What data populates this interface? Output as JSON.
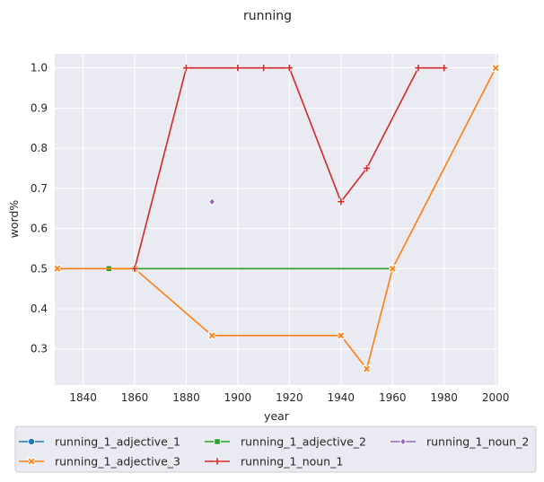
{
  "chart_data": {
    "type": "line",
    "title": "running",
    "xlabel": "year",
    "ylabel": "word%",
    "xlim": [
      1829,
      2001
    ],
    "ylim": [
      0.21,
      1.035
    ],
    "xticks": [
      1840,
      1860,
      1880,
      1900,
      1920,
      1940,
      1960,
      1980,
      2000
    ],
    "yticks": [
      0.3,
      0.4,
      0.5,
      0.6,
      0.7,
      0.8,
      0.9,
      1.0
    ],
    "grid": true,
    "legend_position": "bottom",
    "series": [
      {
        "name": "running_1_adjective_1",
        "color": "#1f77b4",
        "marker": "circle",
        "x": [],
        "y": []
      },
      {
        "name": "running_1_adjective_2",
        "color": "#2ca02c",
        "marker": "square",
        "x": [
          1850,
          1860,
          1960
        ],
        "y": [
          0.5,
          0.5,
          0.5
        ]
      },
      {
        "name": "running_1_noun_2",
        "color": "#9467bd",
        "marker": "diamond",
        "x": [
          1890
        ],
        "y": [
          0.6667
        ]
      },
      {
        "name": "running_1_adjective_3",
        "color": "#ff7f0e",
        "marker": "x",
        "x": [
          1830,
          1860,
          1890,
          1940,
          1950,
          1960,
          2000
        ],
        "y": [
          0.5,
          0.5,
          0.3333,
          0.3333,
          0.25,
          0.5,
          1.0
        ]
      },
      {
        "name": "running_1_noun_1",
        "color": "#d62728",
        "marker": "plus",
        "x": [
          1860,
          1880,
          1900,
          1910,
          1920,
          1940,
          1950,
          1970,
          1980
        ],
        "y": [
          0.5,
          1.0,
          1.0,
          1.0,
          1.0,
          0.6667,
          0.75,
          1.0,
          1.0
        ]
      }
    ]
  }
}
